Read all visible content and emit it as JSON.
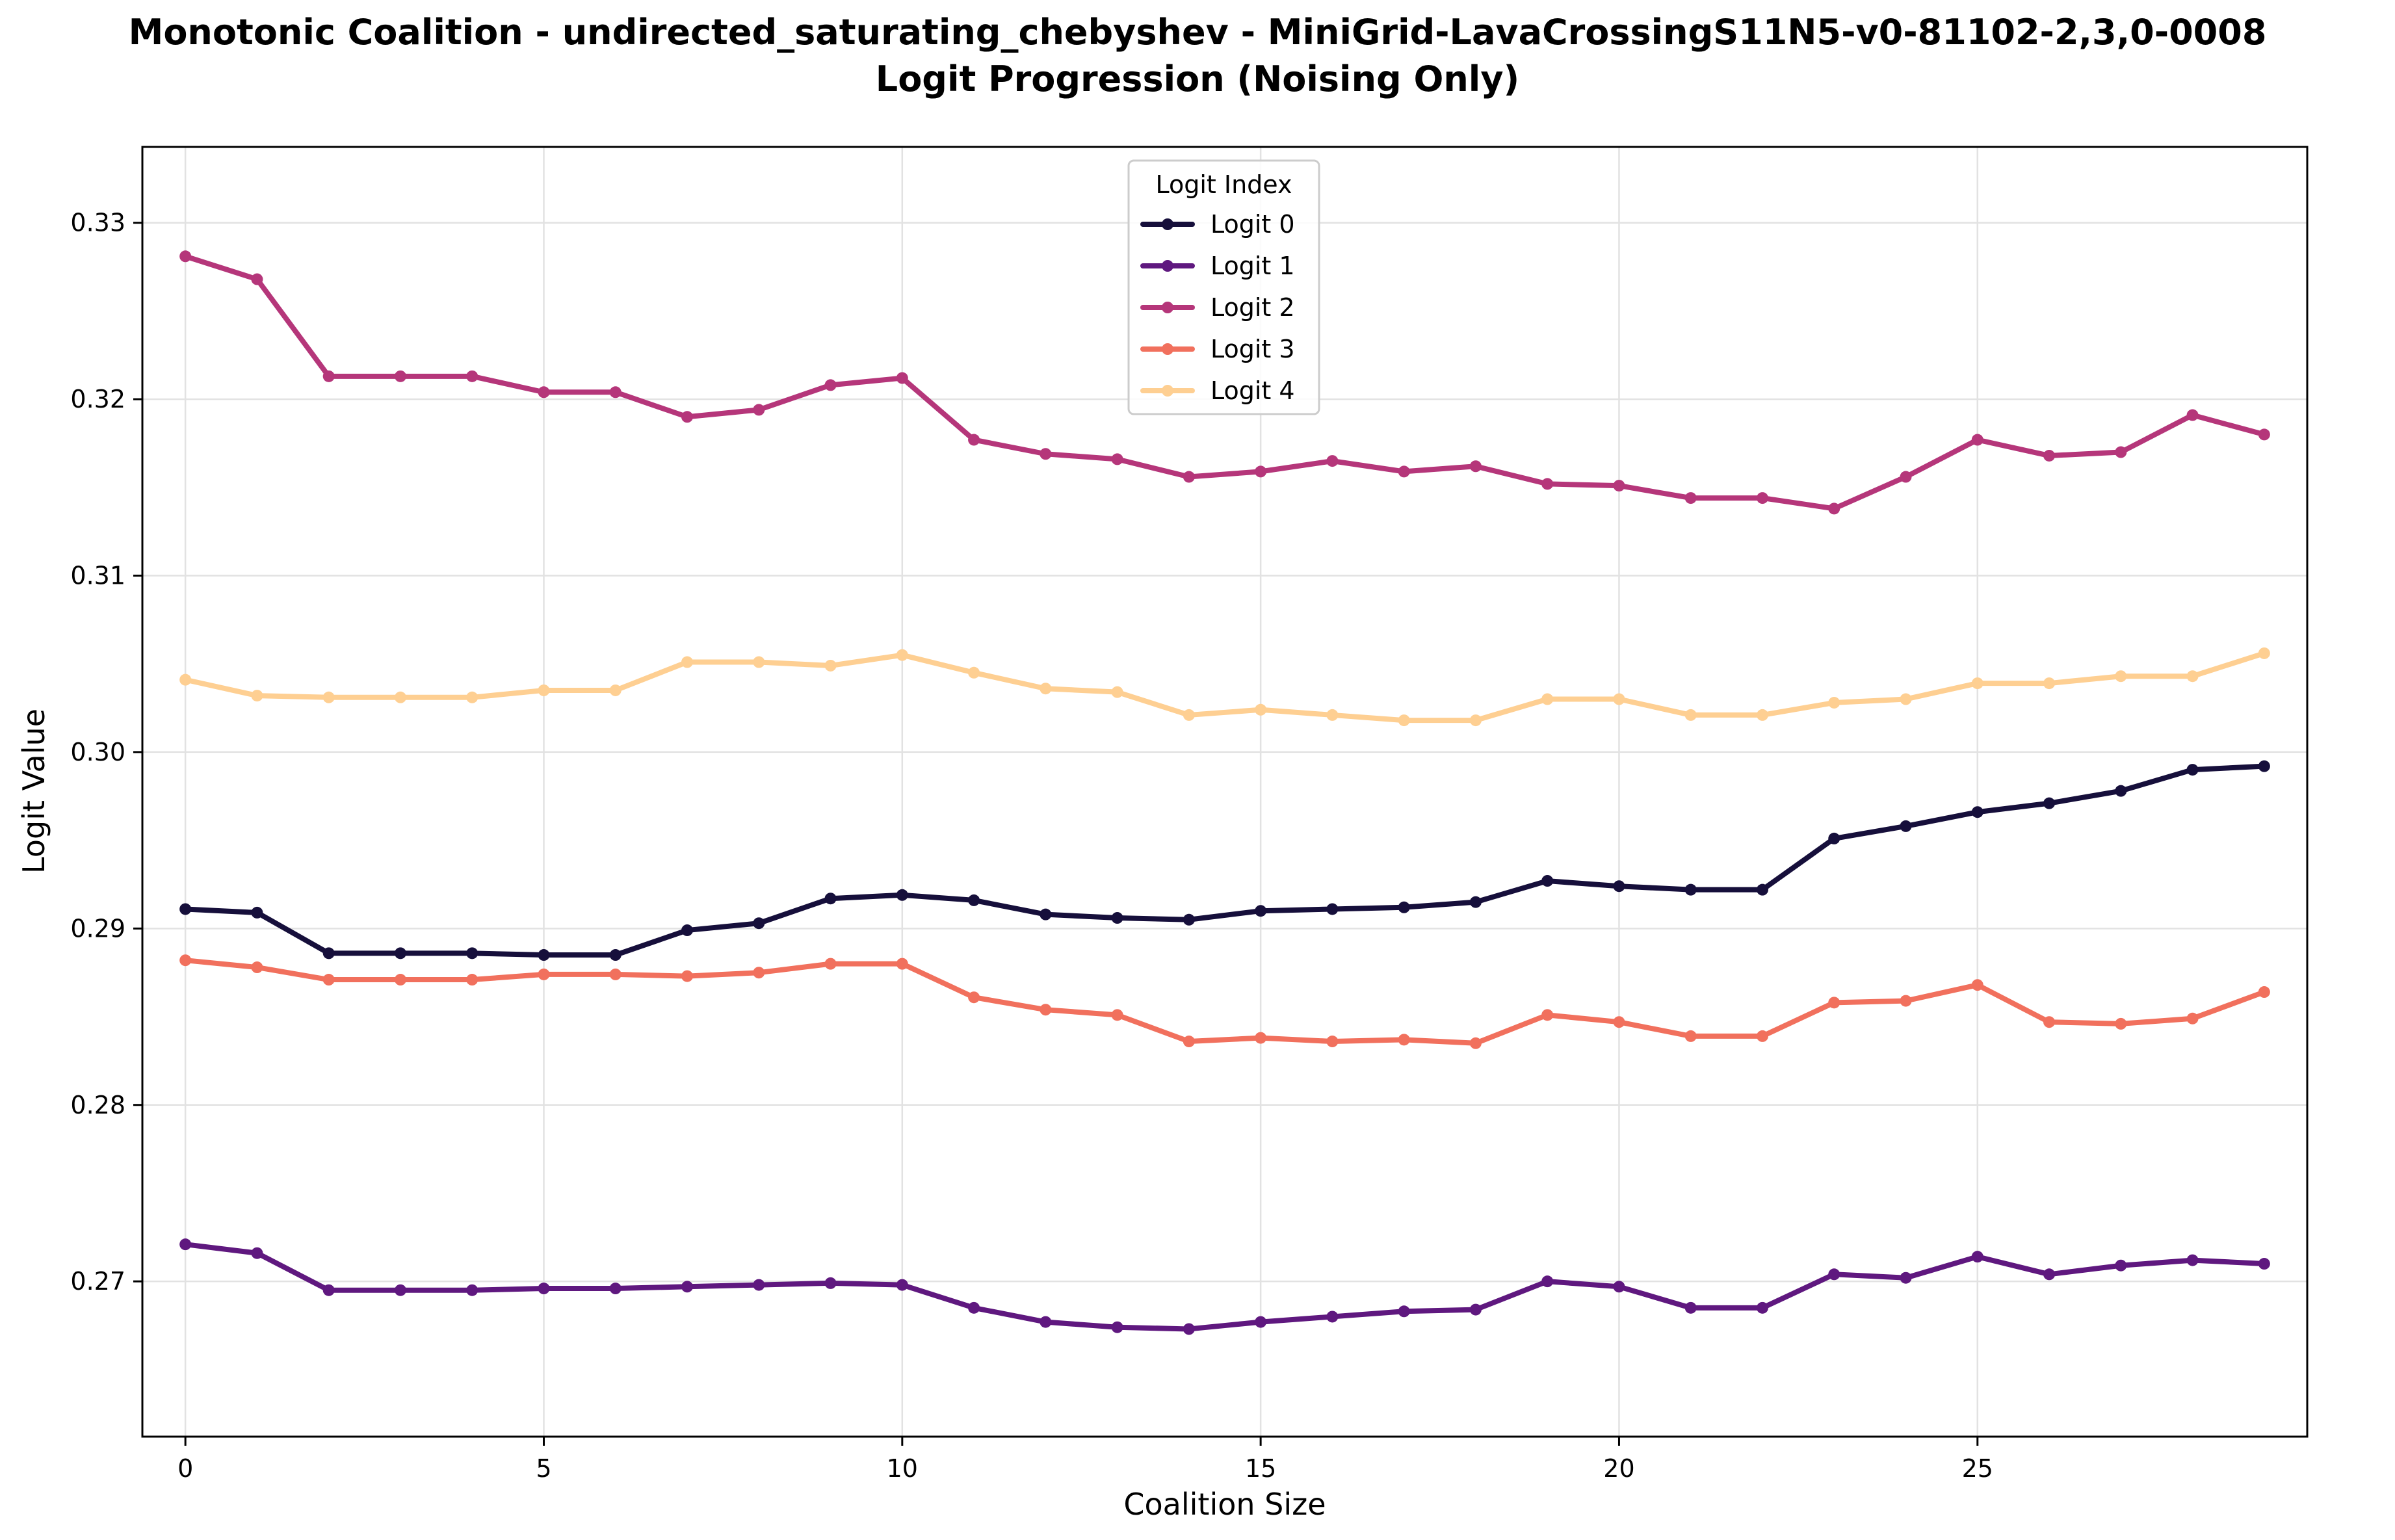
{
  "chart_data": {
    "type": "line",
    "title_line1": "Monotonic Coalition - undirected_saturating_chebyshev - MiniGrid-LavaCrossingS11N5-v0-81102-2,3,0-0008",
    "title_line2": "Logit Progression (Noising Only)",
    "xlabel": "Coalition Size",
    "ylabel": "Logit Value",
    "xlim": [
      -0.6,
      29.6
    ],
    "ylim": [
      0.2612,
      0.3343
    ],
    "xticks": [
      0,
      5,
      10,
      15,
      20,
      25
    ],
    "xtick_labels": [
      "0",
      "5",
      "10",
      "15",
      "20",
      "25"
    ],
    "yticks": [
      0.27,
      0.28,
      0.29,
      0.3,
      0.31,
      0.32,
      0.33
    ],
    "ytick_labels": [
      "0.27",
      "0.28",
      "0.29",
      "0.30",
      "0.31",
      "0.32",
      "0.33"
    ],
    "grid": true,
    "legend": {
      "title": "Logit Index",
      "placement": "upper-center"
    },
    "x": [
      0,
      1,
      2,
      3,
      4,
      5,
      6,
      7,
      8,
      9,
      10,
      11,
      12,
      13,
      14,
      15,
      16,
      17,
      18,
      19,
      20,
      21,
      22,
      23,
      24,
      25,
      26,
      27,
      28,
      29
    ],
    "series": [
      {
        "name": "Logit 0",
        "color": "#160f3b",
        "values": [
          0.2911,
          0.2909,
          0.2886,
          0.2886,
          0.2886,
          0.2885,
          0.2885,
          0.2899,
          0.2903,
          0.2917,
          0.2919,
          0.2916,
          0.2908,
          0.2906,
          0.2905,
          0.291,
          0.2911,
          0.2912,
          0.2915,
          0.2927,
          0.2924,
          0.2922,
          0.2922,
          0.2951,
          0.2958,
          0.2966,
          0.2971,
          0.2978,
          0.299,
          0.2992
        ]
      },
      {
        "name": "Logit 1",
        "color": "#5f187f",
        "values": [
          0.2721,
          0.2716,
          0.2695,
          0.2695,
          0.2695,
          0.2696,
          0.2696,
          0.2697,
          0.2698,
          0.2699,
          0.2698,
          0.2685,
          0.2677,
          0.2674,
          0.2673,
          0.2677,
          0.268,
          0.2683,
          0.2684,
          0.27,
          0.2697,
          0.2685,
          0.2685,
          0.2704,
          0.2702,
          0.2714,
          0.2704,
          0.2709,
          0.2712,
          0.271
        ]
      },
      {
        "name": "Logit 2",
        "color": "#b5367a",
        "values": [
          0.3281,
          0.3268,
          0.3213,
          0.3213,
          0.3213,
          0.3204,
          0.3204,
          0.319,
          0.3194,
          0.3208,
          0.3212,
          0.3177,
          0.3169,
          0.3166,
          0.3156,
          0.3159,
          0.3165,
          0.3159,
          0.3162,
          0.3152,
          0.3151,
          0.3144,
          0.3144,
          0.3138,
          0.3156,
          0.3177,
          0.3168,
          0.317,
          0.3191,
          0.318
        ]
      },
      {
        "name": "Logit 3",
        "color": "#f1705d",
        "values": [
          0.2882,
          0.2878,
          0.2871,
          0.2871,
          0.2871,
          0.2874,
          0.2874,
          0.2873,
          0.2875,
          0.288,
          0.288,
          0.2861,
          0.2854,
          0.2851,
          0.2836,
          0.2838,
          0.2836,
          0.2837,
          0.2835,
          0.2851,
          0.2847,
          0.2839,
          0.2839,
          0.2858,
          0.2859,
          0.2868,
          0.2847,
          0.2846,
          0.2849,
          0.2864
        ]
      },
      {
        "name": "Logit 4",
        "color": "#fecf92",
        "values": [
          0.3041,
          0.3032,
          0.3031,
          0.3031,
          0.3031,
          0.3035,
          0.3035,
          0.3051,
          0.3051,
          0.3049,
          0.3055,
          0.3045,
          0.3036,
          0.3034,
          0.3021,
          0.3024,
          0.3021,
          0.3018,
          0.3018,
          0.303,
          0.303,
          0.3021,
          0.3021,
          0.3028,
          0.303,
          0.3039,
          0.3039,
          0.3043,
          0.3043,
          0.3056
        ]
      }
    ]
  }
}
